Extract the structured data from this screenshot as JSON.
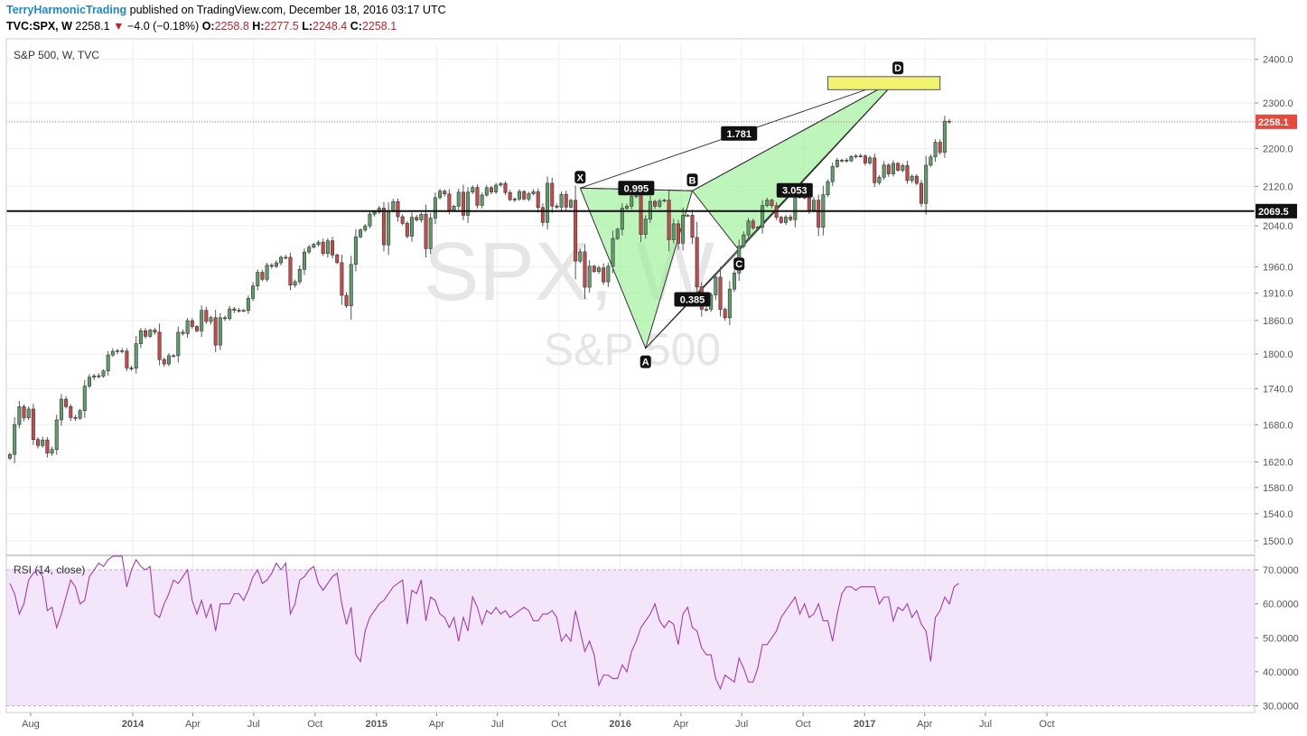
{
  "header": {
    "author": "TerryHarmonicTrading",
    "published": "published on TradingView.com, December 18, 2016 03:17 UTC",
    "symbol": "TVC:SPX, W",
    "price": "2258.1",
    "down_arrow": "▼",
    "change": "−4.0 (−0.18%)",
    "open_label": "O:",
    "open": "2258.8",
    "high_label": "H:",
    "high": "2277.5",
    "low_label": "L:",
    "low": "2248.4",
    "close_label": "C:",
    "close": "2258.1"
  },
  "colors": {
    "up": "#5e9e6a",
    "down": "#c94a4a",
    "pattern_fill": "#9aef95",
    "target_box": "#f2f271",
    "rsi": "#a33cb3",
    "rsi_band": "#f3e6fb",
    "price_line": "#e06060"
  },
  "chart_data": [
    {
      "type": "candlestick",
      "title": "S&P 500, W, TVC",
      "watermark_symbol": "SPX, W",
      "watermark_name": "S&P 500",
      "y_ticks": [
        "2400.0",
        "2300.0",
        "2200.0",
        "2120.0",
        "2040.0",
        "1960.0",
        "1910.0",
        "1860.0",
        "1800.0",
        "1740.0",
        "1680.0",
        "1620.0",
        "1580.0",
        "1540.0",
        "1500.0"
      ],
      "x_ticks": [
        "Aug",
        "2014",
        "Apr",
        "Jul",
        "Oct",
        "2015",
        "Apr",
        "Jul",
        "Oct",
        "2016",
        "Apr",
        "Jul",
        "Oct",
        "2017",
        "Apr",
        "Jul",
        "Oct"
      ],
      "y_scale": "log",
      "y_range": [
        1480,
        2440
      ],
      "last_price": "2258.1",
      "support_level": "2069.5",
      "series": [
        {
          "start": "2013-07-01",
          "interval_weeks": 1,
          "closes": [
            1631.9,
            1680.2,
            1709.7,
            1691.4,
            1705.8,
            1655.8,
            1646.1,
            1655.1,
            1633.8,
            1639.8,
            1687.9,
            1722.3,
            1709.9,
            1691.8,
            1690.5,
            1703.2,
            1744.5,
            1759.8,
            1762.1,
            1761.6,
            1770.5,
            1798.2,
            1804.8,
            1805.8,
            1805.1,
            1775.5,
            1775.3,
            1818.3,
            1841.4,
            1831.4,
            1842.4,
            1838.7,
            1790.3,
            1782.6,
            1797.0,
            1797.0,
            1838.6,
            1836.3,
            1859.5,
            1849.0,
            1841.1,
            1878.3,
            1858.0,
            1865.1,
            1815.7,
            1864.9,
            1863.4,
            1881.1,
            1878.5,
            1878.2,
            1878.2,
            1900.5,
            1923.6,
            1949.4,
            1936.2,
            1962.9,
            1960.9,
            1967.6,
            1978.3,
            1978.2,
            1925.2,
            1931.6,
            1955.1,
            1988.4,
            1997.9,
            2003.4,
            2007.7,
            1985.5,
            2010.4,
            1982.9,
            1967.9,
            1906.1,
            1886.8,
            1964.6,
            2018.1,
            2031.9,
            2039.8,
            2063.5,
            2067.6,
            2075.4,
            2002.3,
            2070.6,
            2088.8,
            2058.2,
            2044.8,
            2019.4,
            2057.1,
            2051.8,
            2063.2,
            1995.0,
            2055.5,
            2096.9,
            2110.3,
            2104.5,
            2071.3,
            2079.4,
            2108.1,
            2061.0,
            2108.3,
            2117.7,
            2081.2,
            2102.1,
            2117.4,
            2108.6,
            2122.7,
            2126.1,
            2107.4,
            2092.8,
            2094.1,
            2109.6,
            2094.1,
            2104.9,
            2109.0,
            2076.8,
            2046.7,
            2126.6,
            2079.7,
            2077.6,
            2103.8,
            2077.6,
            2091.5,
            1970.9,
            1988.9,
            1921.3,
            1961.1,
            1951.1,
            1958.0,
            1931.3,
            1961.1,
            2014.9,
            2033.1,
            2075.2,
            2079.4,
            2099.2,
            2109.8,
            2023.0,
            2053.4,
            2089.2,
            2079.4,
            2090.1,
            2091.7,
            2012.4,
            2043.9,
            2005.6,
            2060.9,
            2061.0,
            2017.1,
            1922.0,
            1880.3,
            1880.3,
            1906.9,
            1940.2,
            1880.1,
            1864.8,
            1917.8,
            1948.1,
            1999.9,
            2022.0,
            2049.6,
            2035.9,
            2037.1,
            2080.7,
            2091.6,
            2080.6,
            2057.1,
            2046.6,
            2057.5,
            2052.3,
            2099.1,
            2099.1,
            2096.1,
            2071.2,
            2091.6,
            2037.4,
            2102.9,
            2129.9,
            2161.7,
            2175.0,
            2175.0,
            2173.6,
            2182.9,
            2184.1,
            2183.9,
            2169.0,
            2179.9,
            2127.8,
            2139.2,
            2164.7,
            2146.1,
            2168.3,
            2153.7,
            2163.7,
            2132.3,
            2141.3,
            2126.4,
            2085.2,
            2164.4,
            2181.9,
            2213.4,
            2191.9,
            2259.5,
            2258.1
          ]
        }
      ],
      "pattern": {
        "type": "Harmonic pattern (XABCD)",
        "points": [
          {
            "label": "X",
            "date": "2015-11-02",
            "price": 2116.5
          },
          {
            "label": "A",
            "date": "2016-02-08",
            "price": 1810.1
          },
          {
            "label": "B",
            "date": "2016-04-18",
            "price": 2111.0
          },
          {
            "label": "C",
            "date": "2016-06-27",
            "price": 1991.7
          },
          {
            "label": "D",
            "date": "2017-02-20",
            "price": 2355
          }
        ],
        "ratios": [
          {
            "label": "0.995",
            "legs": "AB/XA"
          },
          {
            "label": "0.385",
            "legs": "BC/AB"
          },
          {
            "label": "1.781",
            "legs": "AD/XA"
          },
          {
            "label": "3.053",
            "legs": "CD/BC"
          }
        ],
        "target_zone": {
          "from": "2016-11-07",
          "to": "2017-04-24",
          "low": 2330,
          "high": 2360
        }
      }
    },
    {
      "type": "line",
      "title": "RSI (14, close)",
      "y_ticks": [
        "70.0000",
        "60.0000",
        "50.0000",
        "40.0000",
        "30.0000"
      ],
      "y_range": [
        28,
        74
      ],
      "band": [
        30,
        70
      ],
      "series": [
        {
          "name": "RSI (14, close)",
          "start": "2013-07-01",
          "interval_weeks": 1,
          "values": [
            66,
            63,
            57,
            60,
            67,
            69,
            70,
            68,
            58,
            59,
            53,
            57,
            62,
            67,
            65,
            60,
            61,
            68,
            70,
            72,
            71,
            73,
            74,
            74,
            74,
            65,
            70,
            73,
            71,
            70,
            71,
            57,
            56,
            60,
            63,
            67,
            66,
            68,
            70,
            61,
            57,
            61,
            56,
            60,
            52,
            60,
            60,
            60,
            63,
            63,
            61,
            64,
            68,
            70,
            66,
            67,
            69,
            72,
            70,
            72,
            57,
            60,
            67,
            68,
            70,
            71,
            66,
            64,
            66,
            68,
            69,
            60,
            54,
            59,
            45,
            43,
            52,
            56,
            58,
            60,
            61,
            63,
            65,
            66,
            67,
            54,
            64,
            63,
            67,
            55,
            62,
            61,
            57,
            56,
            53,
            56,
            49,
            56,
            52,
            62,
            59,
            54,
            58,
            57,
            59,
            57,
            58,
            56,
            57,
            58,
            59,
            58,
            55,
            55,
            57,
            57,
            58,
            56,
            49,
            51,
            49,
            58,
            52,
            46,
            49,
            45,
            36,
            39,
            39,
            38,
            38,
            42,
            40,
            46,
            49,
            53,
            55,
            57,
            60,
            55,
            53,
            55,
            54,
            48,
            57,
            59,
            53,
            52,
            47,
            45,
            45,
            38,
            35,
            39,
            38,
            37,
            44,
            41,
            37,
            37,
            41,
            48,
            48,
            50,
            52,
            56,
            58,
            60,
            62,
            57,
            60,
            56,
            57,
            60,
            55,
            55,
            49,
            57,
            63,
            65,
            65,
            64,
            65,
            65,
            65,
            65,
            60,
            62,
            62,
            55,
            59,
            58,
            60,
            56,
            58,
            54,
            52,
            43,
            56,
            58,
            62,
            60,
            65,
            66
          ]
        }
      ]
    }
  ]
}
